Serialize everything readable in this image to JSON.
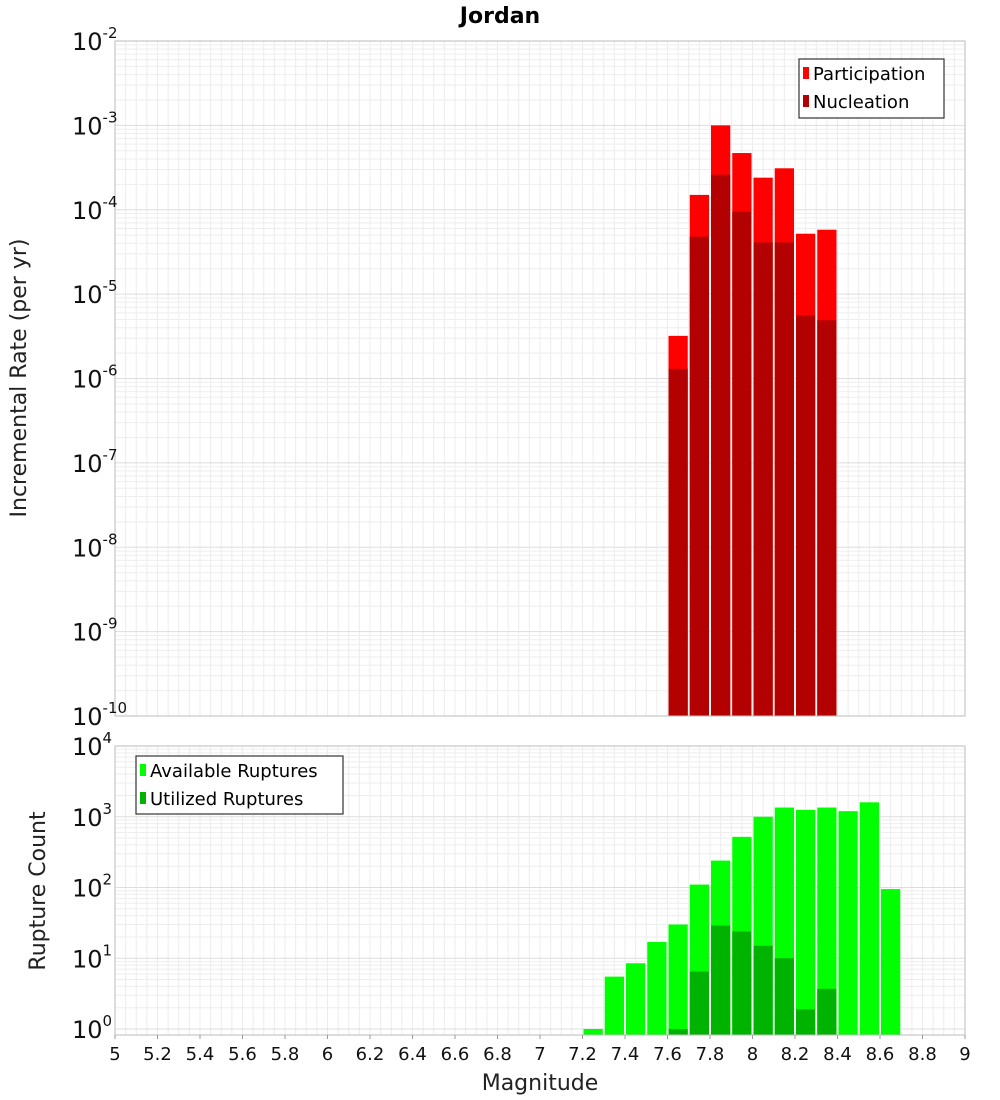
{
  "chart_data": [
    {
      "type": "bar",
      "title": "Jordan",
      "xlabel": "Magnitude",
      "ylabel": "Incremental Rate (per yr)",
      "yscale": "log",
      "ylim_exponents": [
        -10,
        -2
      ],
      "xlim": [
        5,
        9
      ],
      "bin_width": 0.1,
      "legend_position": "top-right",
      "colors": {
        "Participation": "#ff0000",
        "Nucleation": "#b30000"
      },
      "bin_centers": [
        7.65,
        7.75,
        7.85,
        7.95,
        8.05,
        8.15,
        8.25,
        8.35
      ],
      "series": [
        {
          "name": "Participation",
          "values": [
            3.2e-06,
            0.00015,
            0.001,
            0.00047,
            0.00024,
            0.00031,
            5.2e-05,
            5.8e-05
          ]
        },
        {
          "name": "Nucleation",
          "values": [
            1.3e-06,
            4.8e-05,
            0.00026,
            9.5e-05,
            4.1e-05,
            4.1e-05,
            5.6e-06,
            4.9e-06
          ]
        }
      ]
    },
    {
      "type": "bar",
      "xlabel": "Magnitude",
      "ylabel": "Rupture Count",
      "yscale": "log",
      "ylim_exponents": [
        0,
        4
      ],
      "xlim": [
        5,
        9
      ],
      "bin_width": 0.1,
      "legend_position": "top-left",
      "colors": {
        "Available Ruptures": "#00ff00",
        "Utilized Ruptures": "#00b300"
      },
      "bin_centers": [
        7.25,
        7.35,
        7.45,
        7.55,
        7.65,
        7.75,
        7.85,
        7.95,
        8.05,
        8.15,
        8.25,
        8.35,
        8.45,
        8.55,
        8.65
      ],
      "series": [
        {
          "name": "Available Ruptures",
          "values": [
            1,
            5.5,
            8.5,
            17,
            30,
            110,
            240,
            520,
            1000,
            1350,
            1250,
            1350,
            1200,
            1600,
            95
          ]
        },
        {
          "name": "Utilized Ruptures",
          "values": [
            0,
            0,
            0,
            0,
            1,
            6.5,
            29,
            24,
            15,
            10,
            1.9,
            3.7,
            0,
            0,
            0
          ]
        }
      ]
    }
  ],
  "xticks": [
    "5",
    "5.2",
    "5.4",
    "5.6",
    "5.8",
    "6",
    "6.2",
    "6.4",
    "6.6",
    "6.8",
    "7",
    "7.2",
    "7.4",
    "7.6",
    "7.8",
    "8",
    "8.2",
    "8.4",
    "8.6",
    "8.8",
    "9"
  ],
  "xtick_values": [
    5,
    5.2,
    5.4,
    5.6,
    5.8,
    6,
    6.2,
    6.4,
    6.6,
    6.8,
    7,
    7.2,
    7.4,
    7.6,
    7.8,
    8,
    8.2,
    8.4,
    8.6,
    8.8,
    9
  ],
  "top_yticks": {
    "base": "10",
    "exponents": [
      "-2",
      "-3",
      "-4",
      "-5",
      "-6",
      "-7",
      "-8",
      "-9",
      "-10"
    ]
  },
  "bottom_yticks": {
    "base": "10",
    "exponents": [
      "4",
      "3",
      "2",
      "1",
      "0"
    ]
  }
}
